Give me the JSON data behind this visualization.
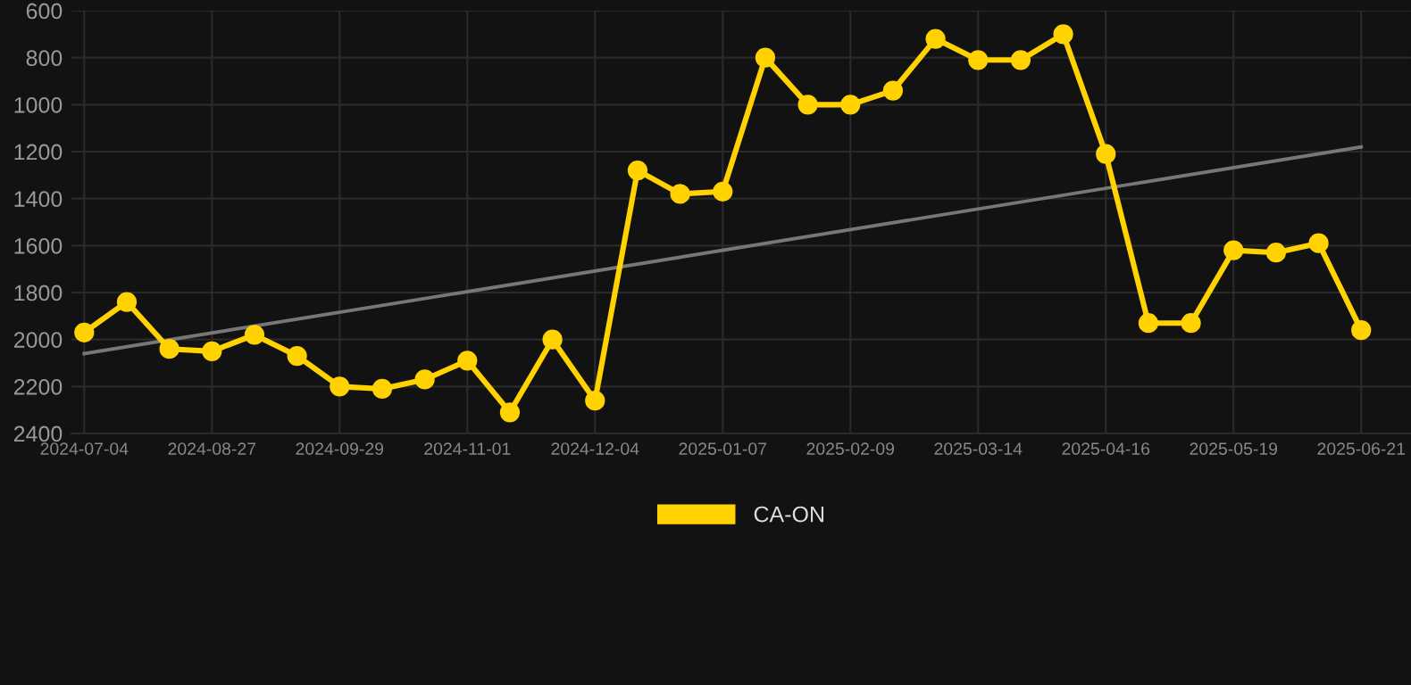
{
  "chart_data": {
    "type": "line",
    "categories": [
      "2024-07-04",
      null,
      null,
      "2024-08-27",
      null,
      null,
      "2024-09-29",
      null,
      null,
      "2024-11-01",
      null,
      null,
      "2024-12-04",
      null,
      null,
      "2025-01-07",
      null,
      null,
      "2025-02-09",
      null,
      null,
      "2025-03-14",
      null,
      null,
      "2025-04-16",
      null,
      null,
      "2025-05-19",
      null,
      null,
      "2025-06-21"
    ],
    "series": [
      {
        "name": "CA-ON",
        "color": "#ffd200",
        "marker": "circle",
        "values": [
          1970,
          1840,
          2040,
          2050,
          1980,
          2070,
          2200,
          2210,
          2170,
          2090,
          2310,
          2000,
          2260,
          1280,
          1380,
          1370,
          800,
          1000,
          1000,
          940,
          720,
          810,
          810,
          700,
          1210,
          1930,
          1930,
          1620,
          1630,
          1590,
          1960
        ]
      },
      {
        "type": "line",
        "color": "#777777",
        "marker": "none",
        "values": [
          2060,
          null,
          null,
          null,
          null,
          null,
          null,
          null,
          null,
          null,
          null,
          null,
          null,
          null,
          null,
          null,
          null,
          null,
          null,
          null,
          null,
          null,
          null,
          null,
          null,
          null,
          null,
          null,
          null,
          null,
          1180
        ]
      }
    ],
    "ylim": [
      2400,
      600
    ],
    "yticks": [
      600,
      800,
      1000,
      1200,
      1400,
      1600,
      1800,
      2000,
      2200,
      2400
    ],
    "grid": true,
    "legend": "bottom"
  }
}
